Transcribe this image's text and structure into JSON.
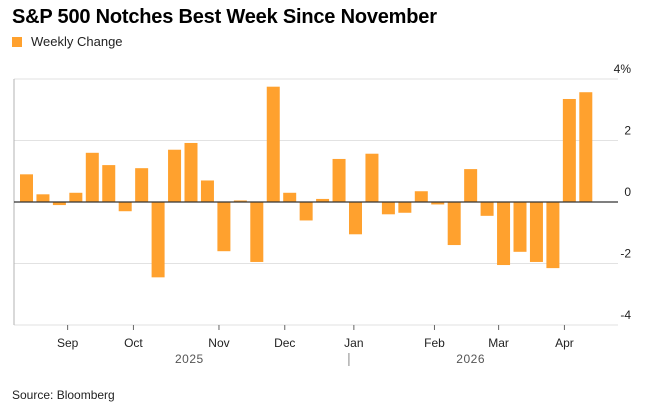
{
  "title": "S&P 500 Notches Best Week Since November",
  "legend_label": "Weekly Change",
  "source": "Source: Bloomberg",
  "colors": {
    "bar": "#ffa12e",
    "grid": "#e2e2e2",
    "zero_line": "#333333",
    "axis": "#b3b3b3"
  },
  "chart_data": {
    "type": "bar",
    "title": "S&P 500 Notches Best Week Since November",
    "series": [
      {
        "name": "Weekly Change",
        "values": [
          0.9,
          0.25,
          -0.1,
          0.3,
          1.6,
          1.2,
          -0.3,
          1.1,
          -2.45,
          1.7,
          1.92,
          0.7,
          -1.6,
          0.05,
          -1.95,
          3.75,
          0.3,
          -0.6,
          0.1,
          1.4,
          -1.05,
          1.57,
          -0.4,
          -0.35,
          0.35,
          -0.08,
          -1.4,
          1.07,
          -0.45,
          -2.05,
          -1.62,
          -1.95,
          -2.15,
          3.35,
          3.57
        ]
      }
    ],
    "ylim": [
      -4,
      4
    ],
    "yticks": [
      4,
      2,
      0,
      -2,
      -4
    ],
    "ytick_labels": [
      "4%",
      "2",
      "0",
      "-2",
      "-4"
    ],
    "x_month_labels": [
      {
        "label": "Sep",
        "week_index": 2.5
      },
      {
        "label": "Oct",
        "week_index": 6.5
      },
      {
        "label": "Nov",
        "week_index": 11.7
      },
      {
        "label": "Dec",
        "week_index": 15.7
      },
      {
        "label": "Jan",
        "week_index": 19.9
      },
      {
        "label": "Feb",
        "week_index": 24.8
      },
      {
        "label": "Mar",
        "week_index": 28.7
      },
      {
        "label": "Apr",
        "week_index": 32.7
      }
    ],
    "x_year_labels": [
      {
        "label": "2025",
        "week_index": 9.9
      },
      {
        "label": "2026",
        "week_index": 27.0
      }
    ],
    "year_divider_week_index": 19.6,
    "xlabel": "",
    "ylabel": ""
  }
}
